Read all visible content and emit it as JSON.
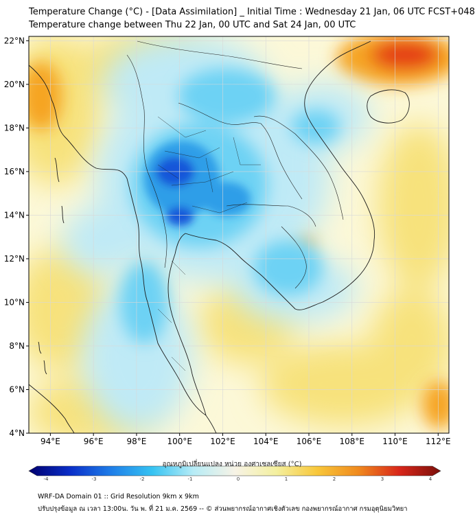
{
  "header": {
    "title_line1": "Temperature Change (°C) - [Data Assimilation] _ Initial Time : Wednesday 21 Jan, 06 UTC FCST+048",
    "title_line2": "Temperature change between Thu 22 Jan, 00 UTC and Sat 24 Jan, 00 UTC"
  },
  "map": {
    "lat_labels": [
      "22°N",
      "20°N",
      "18°N",
      "16°N",
      "14°N",
      "12°N",
      "10°N",
      "8°N",
      "6°N",
      "4°N"
    ],
    "lon_labels": [
      "94°E",
      "96°E",
      "98°E",
      "100°E",
      "102°E",
      "104°E",
      "106°E",
      "108°E",
      "110°E",
      "112°E"
    ],
    "lat_range": [
      4,
      22.2
    ],
    "lon_range": [
      93,
      112.5
    ],
    "colors": {
      "background": "#fcf8d8",
      "warm_light": "#f7e27c",
      "warm_orange": "#f6a423",
      "warm_red": "#e53e12",
      "cool_light": "#bfeaf6",
      "cool_cyan": "#6dd2f4",
      "cool_blue": "#2f9ee8",
      "cool_deep": "#1456d9",
      "border": "#1c1c1c",
      "grid": "#d8d8d8"
    }
  },
  "colorbar": {
    "label": "อุณหภูมิเปลี่ยนแปลง หน่วย องศาเซลเซียส (°C)",
    "ticks": [
      "-4",
      "-3",
      "-2",
      "-1",
      "0",
      "1",
      "2",
      "3",
      "4"
    ],
    "range": [
      -4,
      4
    ],
    "gradient": [
      "#00006e",
      "#0a2ec8",
      "#1f7ee8",
      "#36c3f2",
      "#b7ecf6",
      "#f7f3e6",
      "#f4f0a0",
      "#f8c73a",
      "#f08a1e",
      "#d8261a",
      "#7a0f0a"
    ]
  },
  "footer": {
    "line1": "WRF-DA Domain 01 :: Grid Resolution 9km x 9km",
    "line2": "ปรับปรุงข้อมูล ณ เวลา 13:00น. วัน พ. ที่ 21 ม.ค. 2569 -- © ส่วนพยากรณ์อากาศเชิงตัวเลข กองพยากรณ์อากาศ กรมอุตุนิยมวิทยา"
  }
}
